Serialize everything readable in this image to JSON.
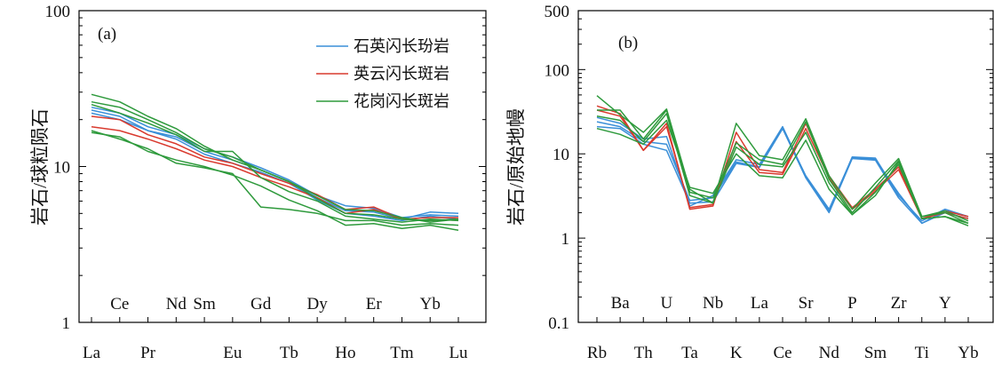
{
  "chart_data": [
    {
      "type": "line",
      "panel_label": "(a)",
      "ylabel": "岩石/球粒陨石",
      "yscale": "log",
      "ylim": [
        1,
        100
      ],
      "yticks": [
        "1",
        "10",
        "100"
      ],
      "categories": [
        "La",
        "Ce",
        "Pr",
        "Nd",
        "Sm",
        "Eu",
        "Gd",
        "Tb",
        "Dy",
        "Ho",
        "Er",
        "Tm",
        "Yb",
        "Lu"
      ],
      "categories_top_row": [
        "Ce",
        "Nd",
        "Sm",
        "Gd",
        "Dy",
        "Er",
        "Yb"
      ],
      "categories_bottom_row": [
        "La",
        "Pr",
        "Eu",
        "Tb",
        "Ho",
        "Tm",
        "Lu"
      ],
      "legend_position": "top-right",
      "legend": [
        {
          "name": "石英闪长玢岩",
          "color": "#3a8fd8"
        },
        {
          "name": "英云闪长斑岩",
          "color": "#d93a2e"
        },
        {
          "name": "花岗闪长斑岩",
          "color": "#2e9a3c"
        }
      ],
      "series": [
        {
          "name": "石英闪长玢岩",
          "color": "#3a8fd8",
          "values": [
            23,
            21,
            17,
            15.5,
            12.5,
            11,
            9.5,
            8,
            6.3,
            5.2,
            5.1,
            4.6,
            5.1,
            5.0
          ]
        },
        {
          "name": "石英闪长玢岩",
          "color": "#3a8fd8",
          "values": [
            24,
            22,
            18,
            16,
            13,
            11.5,
            9.8,
            8.2,
            6.5,
            5.6,
            5.4,
            4.7,
            4.9,
            4.8
          ]
        },
        {
          "name": "石英闪长玢岩",
          "color": "#3a8fd8",
          "values": [
            22,
            20,
            17,
            15,
            12,
            10.5,
            9.2,
            7.8,
            6.1,
            5.0,
            4.8,
            4.5,
            4.8,
            4.6
          ]
        },
        {
          "name": "英云闪长斑岩",
          "color": "#d93a2e",
          "values": [
            21,
            20,
            16,
            14,
            11.5,
            10.5,
            9.0,
            7.8,
            6.6,
            5.3,
            5.5,
            4.6,
            4.7,
            4.7
          ]
        },
        {
          "name": "英云闪长斑岩",
          "color": "#d93a2e",
          "values": [
            18,
            17,
            15,
            13,
            11,
            10,
            8.5,
            7.4,
            6.3,
            5.0,
            5.3,
            4.6,
            4.5,
            4.6
          ]
        },
        {
          "name": "花岗闪长斑岩",
          "color": "#2e9a3c",
          "values": [
            29,
            26,
            21,
            17.5,
            13.5,
            11,
            9.5,
            8,
            6.5,
            5.3,
            5.2,
            4.7,
            4.4,
            4.6
          ]
        },
        {
          "name": "花岗闪长斑岩",
          "color": "#2e9a3c",
          "values": [
            26,
            24,
            20,
            16.5,
            13,
            11.5,
            9.5,
            8,
            6.2,
            5.0,
            4.9,
            4.6,
            4.5,
            4.6
          ]
        },
        {
          "name": "花岗闪长斑岩",
          "color": "#2e9a3c",
          "values": [
            25,
            22,
            19,
            16,
            12.5,
            12.5,
            8.5,
            6.9,
            6.0,
            4.8,
            4.6,
            4.4,
            4.6,
            4.5
          ]
        },
        {
          "name": "花岗闪长斑岩",
          "color": "#2e9a3c",
          "values": [
            17,
            15,
            13,
            10.5,
            9.8,
            9.0,
            5.5,
            5.3,
            5.0,
            4.5,
            4.5,
            4.2,
            4.3,
            4.2
          ]
        },
        {
          "name": "花岗闪长斑岩",
          "color": "#2e9a3c",
          "values": [
            16.5,
            15.5,
            12.5,
            11,
            10,
            8.8,
            7.5,
            6.1,
            5.2,
            4.2,
            4.3,
            4.0,
            4.2,
            3.9
          ]
        }
      ]
    },
    {
      "type": "line",
      "panel_label": "(b)",
      "ylabel": "岩石/原始地幔",
      "yscale": "log",
      "ylim": [
        0.1,
        500
      ],
      "yticks": [
        "0.1",
        "1",
        "10",
        "100",
        "500"
      ],
      "categories": [
        "Rb",
        "Ba",
        "Th",
        "U",
        "Ta",
        "Nb",
        "K",
        "La",
        "Ce",
        "Sr",
        "Nd",
        "P",
        "Sm",
        "Zr",
        "Ti",
        "Y",
        "Yb"
      ],
      "categories_top_row": [
        "Ba",
        "U",
        "Nb",
        "La",
        "Sr",
        "P",
        "Zr",
        "Y"
      ],
      "categories_bottom_row": [
        "Rb",
        "Th",
        "Ta",
        "K",
        "Ce",
        "Nd",
        "Sm",
        "Ti",
        "Yb"
      ],
      "series": [
        {
          "name": "石英闪长玢岩",
          "color": "#3a8fd8",
          "values": [
            24,
            21,
            14,
            13,
            2.8,
            3.0,
            8.0,
            7.0,
            20,
            5.5,
            2.2,
            9.0,
            8.6,
            3.4,
            1.5,
            2.1,
            1.8
          ]
        },
        {
          "name": "石英闪长玢岩",
          "color": "#3a8fd8",
          "values": [
            27,
            23,
            15,
            16,
            2.4,
            3.2,
            8.5,
            7.5,
            21,
            5.4,
            2.1,
            9.2,
            8.9,
            3.2,
            1.6,
            2.2,
            1.8
          ]
        },
        {
          "name": "石英闪长玢岩",
          "color": "#3a8fd8",
          "values": [
            21,
            20,
            13,
            11,
            2.6,
            2.7,
            7.7,
            6.9,
            20,
            5.2,
            2.0,
            8.8,
            8.4,
            3.0,
            1.5,
            2.0,
            1.7
          ]
        },
        {
          "name": "英云闪长斑岩",
          "color": "#d93a2e",
          "values": [
            37,
            30,
            11,
            23,
            2.2,
            2.4,
            18,
            6.5,
            6.0,
            23,
            5.5,
            2.3,
            3.8,
            7.0,
            1.7,
            2.1,
            1.8
          ]
        },
        {
          "name": "英云闪长斑岩",
          "color": "#d93a2e",
          "values": [
            33,
            28,
            11,
            21,
            2.3,
            2.5,
            14,
            6.0,
            5.7,
            20,
            5.2,
            2.2,
            3.6,
            6.5,
            1.7,
            2.0,
            1.7
          ]
        },
        {
          "name": "花岗闪长斑岩",
          "color": "#2e9a3c",
          "values": [
            49,
            29,
            18,
            34,
            3.8,
            2.6,
            23,
            9.5,
            8.5,
            26,
            5.5,
            2.2,
            4.5,
            8.8,
            1.8,
            2.1,
            1.6
          ]
        },
        {
          "name": "花岗闪长斑岩",
          "color": "#2e9a3c",
          "values": [
            33,
            33,
            15,
            33,
            3.5,
            3.0,
            13.5,
            8.5,
            7.5,
            24,
            5.0,
            2.0,
            4.0,
            8.3,
            1.8,
            2.0,
            1.5
          ]
        },
        {
          "name": "花岗闪长斑岩",
          "color": "#2e9a3c",
          "values": [
            28,
            25,
            14,
            30,
            3.2,
            2.6,
            12,
            7.5,
            7.0,
            18,
            4.5,
            1.9,
            3.5,
            7.5,
            1.7,
            1.8,
            1.4
          ]
        },
        {
          "name": "花岗闪长斑岩",
          "color": "#2e9a3c",
          "values": [
            20,
            17,
            13,
            25,
            4.0,
            3.4,
            10,
            5.5,
            5.2,
            14.5,
            3.8,
            1.9,
            3.2,
            8.0,
            1.7,
            1.8,
            1.5
          ]
        }
      ]
    }
  ]
}
